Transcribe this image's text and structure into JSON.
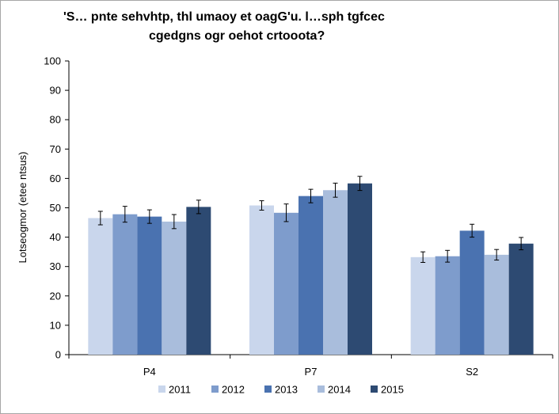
{
  "chart_data": {
    "type": "bar",
    "title_lines": [
      "'S… pnte sehvhtp, thl umaoy et oagG'u. l…sph tgfcec",
      "cgedgns ogr oehot crtooota?"
    ],
    "xlabel": "",
    "ylabel": "Lotseogmor (etee ntsus)",
    "ylim": [
      0,
      100
    ],
    "yticks": [
      "0",
      "10",
      "20",
      "30",
      "40",
      "50",
      "60",
      "70",
      "80",
      "90",
      "100"
    ],
    "categories": [
      "P4",
      "P7",
      "S2"
    ],
    "series": [
      {
        "name": "2011",
        "color": "#c9d6ec",
        "values": [
          46.5,
          50.8,
          33.2
        ],
        "err": [
          2.3,
          1.6,
          1.8
        ]
      },
      {
        "name": "2012",
        "color": "#7e9ccc",
        "values": [
          47.8,
          48.3,
          33.5
        ],
        "err": [
          2.7,
          3.0,
          2.0
        ]
      },
      {
        "name": "2013",
        "color": "#4a72b0",
        "values": [
          47.0,
          54.0,
          42.2
        ],
        "err": [
          2.3,
          2.3,
          2.2
        ]
      },
      {
        "name": "2014",
        "color": "#a9bddc",
        "values": [
          45.3,
          56.0,
          34.0
        ],
        "err": [
          2.4,
          2.4,
          1.8
        ]
      },
      {
        "name": "2015",
        "color": "#2d4a72",
        "values": [
          50.3,
          58.3,
          37.8
        ],
        "err": [
          2.3,
          2.4,
          2.1
        ]
      }
    ],
    "legend": "bottom",
    "grid": false
  }
}
